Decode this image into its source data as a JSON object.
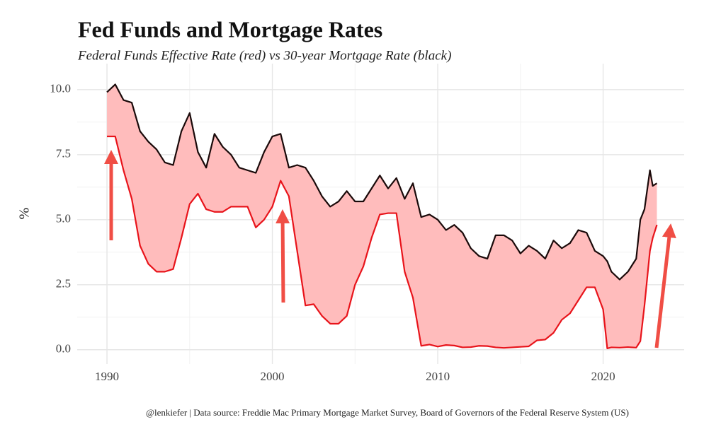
{
  "chart_data": {
    "type": "line",
    "title": "Fed Funds and Mortgage Rates",
    "subtitle": "Federal Funds Effective Rate (red) vs 30-year Mortgage Rate (black)",
    "y_label": "%",
    "caption": "@lenkiefer | Data source: Freddie Mac Primary Mortgage Market Survey, Board of Governors of the Federal Reserve System (US)",
    "x": [
      1990,
      1990.5,
      1991,
      1991.5,
      1992,
      1992.5,
      1993,
      1993.5,
      1994,
      1994.5,
      1995,
      1995.5,
      1996,
      1996.5,
      1997,
      1997.5,
      1998,
      1998.5,
      1999,
      1999.5,
      2000,
      2000.5,
      2001,
      2001.5,
      2002,
      2002.5,
      2003,
      2003.5,
      2004,
      2004.5,
      2005,
      2005.5,
      2006,
      2006.5,
      2007,
      2007.5,
      2008,
      2008.5,
      2009,
      2009.5,
      2010,
      2010.5,
      2011,
      2011.5,
      2012,
      2012.5,
      2013,
      2013.5,
      2014,
      2014.5,
      2015,
      2015.5,
      2016,
      2016.5,
      2017,
      2017.5,
      2018,
      2018.5,
      2019,
      2019.5,
      2020,
      2020.25,
      2020.5,
      2021,
      2021.5,
      2022,
      2022.25,
      2022.5,
      2022.83,
      2023,
      2023.25
    ],
    "series": [
      {
        "color": "#1a0a0a",
        "values": [
          9.9,
          10.2,
          9.6,
          9.5,
          8.4,
          8.0,
          7.7,
          7.2,
          7.1,
          8.4,
          9.1,
          7.6,
          7.0,
          8.3,
          7.8,
          7.5,
          7.0,
          6.9,
          6.8,
          7.6,
          8.2,
          8.3,
          7.0,
          7.1,
          7.0,
          6.5,
          5.9,
          5.5,
          5.7,
          6.1,
          5.7,
          5.7,
          6.2,
          6.7,
          6.2,
          6.6,
          5.8,
          6.4,
          5.1,
          5.2,
          5.0,
          4.6,
          4.8,
          4.5,
          3.9,
          3.6,
          3.5,
          4.4,
          4.4,
          4.2,
          3.7,
          4.0,
          3.8,
          3.5,
          4.2,
          3.9,
          4.1,
          4.6,
          4.5,
          3.8,
          3.6,
          3.4,
          3.0,
          2.7,
          3.0,
          3.5,
          5.0,
          5.4,
          6.9,
          6.3,
          6.4
        ]
      },
      {
        "color": "#e8141b",
        "values": [
          8.2,
          8.2,
          6.9,
          5.8,
          4.0,
          3.3,
          3.0,
          3.0,
          3.1,
          4.3,
          5.6,
          6.0,
          5.4,
          5.3,
          5.3,
          5.5,
          5.5,
          5.5,
          4.7,
          5.0,
          5.5,
          6.5,
          5.9,
          3.8,
          1.7,
          1.75,
          1.3,
          1.0,
          1.0,
          1.3,
          2.5,
          3.2,
          4.3,
          5.2,
          5.25,
          5.25,
          3.0,
          2.0,
          0.15,
          0.2,
          0.12,
          0.18,
          0.16,
          0.09,
          0.1,
          0.15,
          0.14,
          0.09,
          0.07,
          0.09,
          0.11,
          0.13,
          0.36,
          0.39,
          0.65,
          1.15,
          1.4,
          1.9,
          2.4,
          2.4,
          1.55,
          0.05,
          0.09,
          0.08,
          0.1,
          0.08,
          0.33,
          1.7,
          3.8,
          4.3,
          4.8
        ]
      }
    ],
    "ribbon_color": "#ffbcbc",
    "xlim": [
      1988.2,
      2024.9
    ],
    "xticks": [
      1990,
      2000,
      2010,
      2020
    ],
    "xminor_ticks": [
      1995,
      2005,
      2015
    ],
    "ylim": [
      -0.55,
      11
    ],
    "yticks": [
      {
        "value": 0,
        "label": "0.0"
      },
      {
        "value": 2.5,
        "label": "2.5"
      },
      {
        "value": 5,
        "label": "5.0"
      },
      {
        "value": 7.5,
        "label": "7.5"
      },
      {
        "value": 10,
        "label": "10.0"
      }
    ],
    "yminor_ticks": [
      1.25,
      3.75,
      6.25,
      8.75
    ],
    "grid": true
  }
}
